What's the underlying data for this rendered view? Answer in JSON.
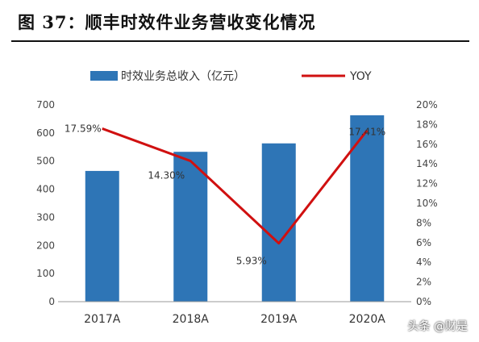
{
  "title": "图 37：顺丰时效件业务营收变化情况",
  "watermark": "头条 @财是",
  "chart_data": {
    "type": "bar",
    "categories": [
      "2017A",
      "2018A",
      "2019A",
      "2020A"
    ],
    "series": [
      {
        "name": "时效业务总收入（亿元）",
        "kind": "bar",
        "axis": "left",
        "color": "#2E75B6",
        "values": [
          465,
          533,
          563,
          663
        ]
      },
      {
        "name": "YOY",
        "kind": "line",
        "axis": "right",
        "color": "#D01010",
        "values": [
          17.59,
          14.3,
          5.93,
          17.41
        ],
        "labels": [
          "17.59%",
          "14.30%",
          "5.93%",
          "17.41%"
        ]
      }
    ],
    "y_left": {
      "min": 0,
      "max": 700,
      "ticks": [
        "0",
        "100",
        "200",
        "300",
        "400",
        "500",
        "600",
        "700"
      ]
    },
    "y_right": {
      "min": 0,
      "max": 20,
      "ticks": [
        "0%",
        "2%",
        "4%",
        "6%",
        "8%",
        "10%",
        "12%",
        "14%",
        "16%",
        "18%",
        "20%"
      ]
    },
    "legend_position": "top",
    "grid": false
  }
}
